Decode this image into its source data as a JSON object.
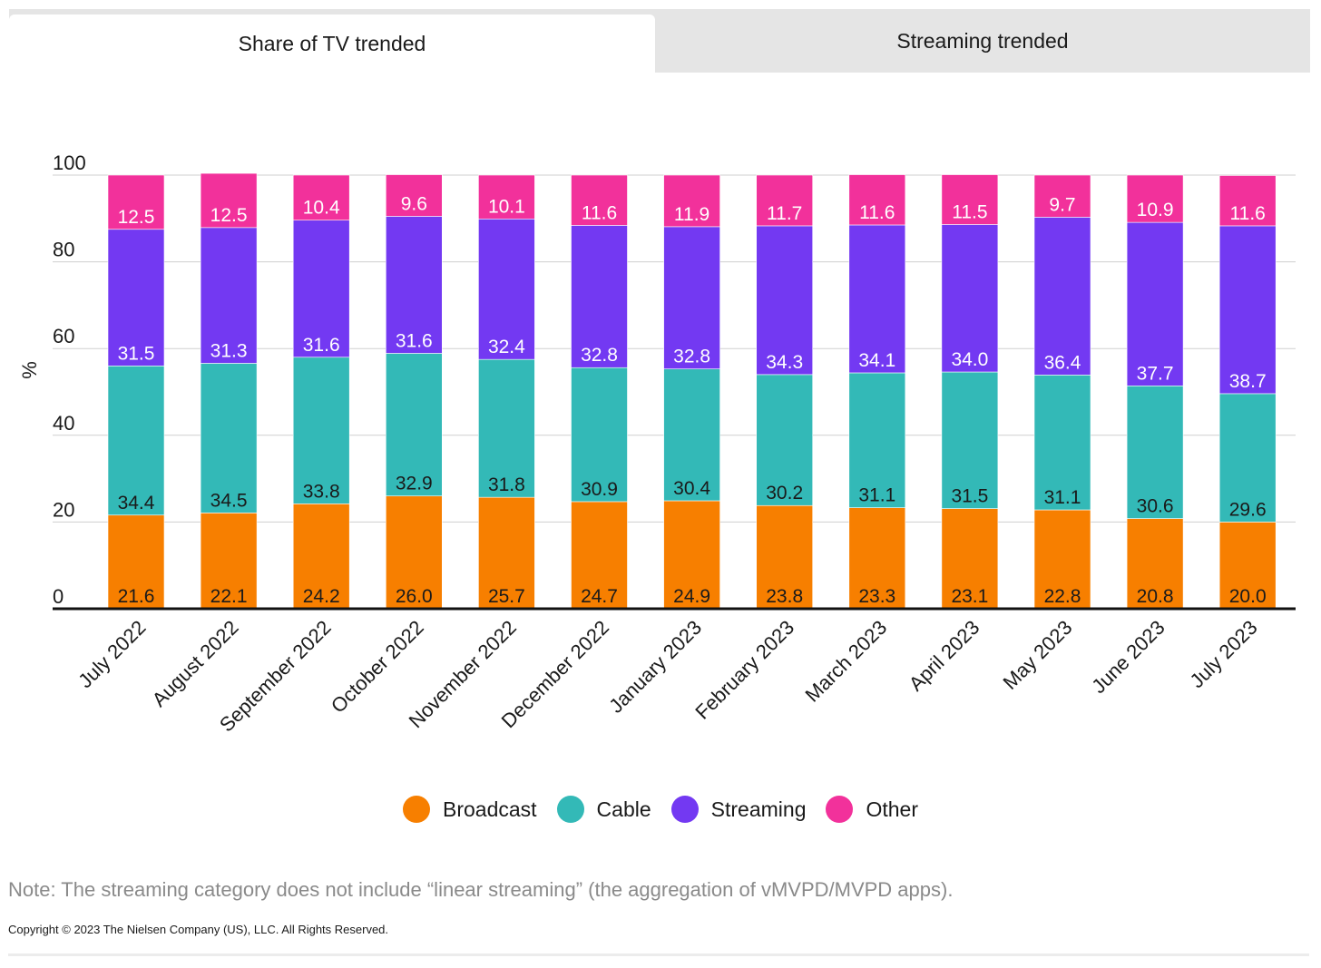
{
  "tabs": {
    "active_label": "Share of TV trended",
    "inactive_label": "Streaming trended"
  },
  "colors": {
    "broadcast": "#f77f00",
    "cable": "#33b9b7",
    "streaming": "#7339f2",
    "other": "#f2319b"
  },
  "chart_data": {
    "type": "bar",
    "stacked": true,
    "ylabel": "%",
    "xlabel": "",
    "ylim": [
      0,
      100
    ],
    "yticks": [
      0,
      20,
      40,
      60,
      80,
      100
    ],
    "grid": true,
    "legend_position": "bottom",
    "categories": [
      "July 2022",
      "August 2022",
      "September 2022",
      "October 2022",
      "November 2022",
      "December 2022",
      "January 2023",
      "February 2023",
      "March 2023",
      "April 2023",
      "May 2023",
      "June 2023",
      "July 2023"
    ],
    "series": [
      {
        "name": "Broadcast",
        "color": "#f77f00",
        "label_color": "#1a1a1a",
        "values": [
          21.6,
          22.1,
          24.2,
          26.0,
          25.7,
          24.7,
          24.9,
          23.8,
          23.3,
          23.1,
          22.8,
          20.8,
          20.0
        ]
      },
      {
        "name": "Cable",
        "color": "#33b9b7",
        "label_color": "#1a1a1a",
        "values": [
          34.4,
          34.5,
          33.8,
          32.9,
          31.8,
          30.9,
          30.4,
          30.2,
          31.1,
          31.5,
          31.1,
          30.6,
          29.6
        ]
      },
      {
        "name": "Streaming",
        "color": "#7339f2",
        "label_color": "#ffffff",
        "values": [
          31.5,
          31.3,
          31.6,
          31.6,
          32.4,
          32.8,
          32.8,
          34.3,
          34.1,
          34.0,
          36.4,
          37.7,
          38.7
        ]
      },
      {
        "name": "Other",
        "color": "#f2319b",
        "label_color": "#ffffff",
        "values": [
          12.5,
          12.5,
          10.4,
          9.6,
          10.1,
          11.6,
          11.9,
          11.7,
          11.6,
          11.5,
          9.7,
          10.9,
          11.6
        ]
      }
    ]
  },
  "note": "Note: The streaming category does not include “linear streaming” (the aggregation of vMVPD/MVPD apps).",
  "copyright": "Copyright © 2023 The Nielsen Company (US), LLC. All Rights Reserved."
}
